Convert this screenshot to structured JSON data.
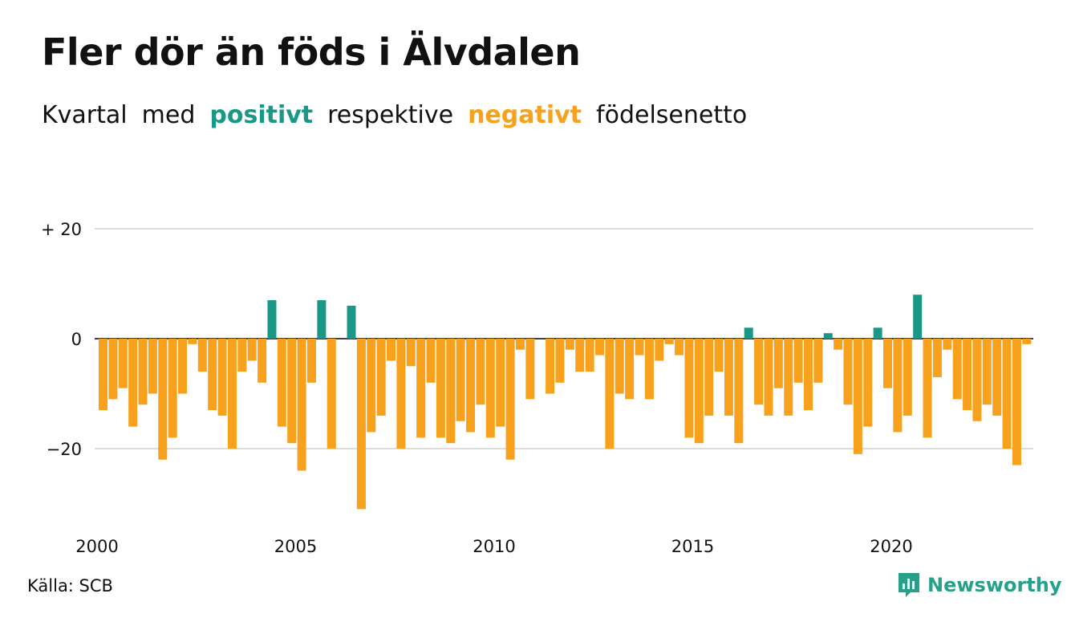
{
  "title": "Fler dör än föds i Älvdalen",
  "subtitle": {
    "part1": "Kvartal",
    "part2": "med",
    "positive_word": "positivt",
    "part3": "respektive",
    "negative_word": "negativt",
    "part4": "födelsenetto"
  },
  "colors": {
    "positive": "#1a9887",
    "negative": "#f7a11d",
    "grid": "#dddddd",
    "brand": "#27a08a",
    "text": "#111111"
  },
  "chart_data": {
    "type": "bar",
    "title": "Fler dör än föds i Älvdalen",
    "xlabel": "",
    "ylabel": "",
    "ylim": [
      -31,
      20
    ],
    "grid": true,
    "y_ticks": [
      {
        "value": 20,
        "label": "+ 20"
      },
      {
        "value": 0,
        "label": "0"
      },
      {
        "value": -20,
        "label": "−20"
      }
    ],
    "x_ticks": [
      {
        "value": 2000,
        "label": "2000"
      },
      {
        "value": 2005,
        "label": "2005"
      },
      {
        "value": 2010,
        "label": "2010"
      },
      {
        "value": 2015,
        "label": "2015"
      },
      {
        "value": 2020,
        "label": "2020"
      }
    ],
    "first_quarter": "2000 Q1",
    "quarters_per_year": 4,
    "values": [
      -13,
      -11,
      -9,
      -16,
      -12,
      -10,
      -22,
      -18,
      -10,
      -1,
      -6,
      -13,
      -14,
      -20,
      -6,
      -4,
      -8,
      7,
      -16,
      -19,
      -24,
      -8,
      7,
      -20,
      0,
      6,
      -31,
      -17,
      -14,
      -4,
      -20,
      -5,
      -18,
      -8,
      -18,
      -19,
      -15,
      -17,
      -12,
      -18,
      -16,
      -22,
      -2,
      -11,
      0,
      -10,
      -8,
      -2,
      -6,
      -6,
      -3,
      -20,
      -10,
      -11,
      -3,
      -11,
      -4,
      -1,
      -3,
      -18,
      -19,
      -14,
      -6,
      -14,
      -19,
      2,
      -12,
      -14,
      -9,
      -14,
      -8,
      -13,
      -8,
      1,
      -2,
      -12,
      -21,
      -16,
      2,
      -9,
      -17,
      -14,
      8,
      -18,
      -7,
      -2,
      -11,
      -13,
      -15,
      -12,
      -14,
      -20,
      -23,
      -1
    ]
  },
  "source": "Källa: SCB",
  "brand": {
    "name": "Newsworthy",
    "icon": "newsworthy-logo-icon"
  }
}
